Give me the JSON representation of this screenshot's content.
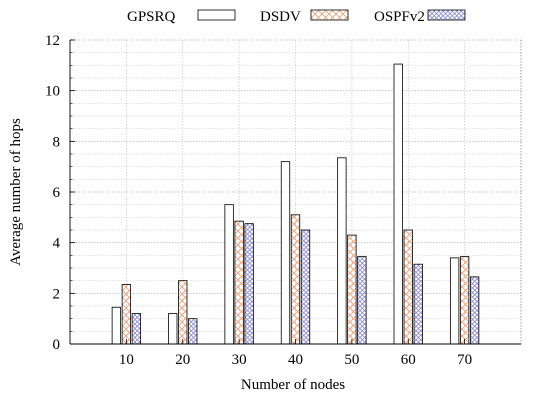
{
  "chart_data": {
    "type": "bar",
    "title": "",
    "xlabel": "Number of nodes",
    "ylabel": "Average number of hops",
    "categories": [
      "10",
      "20",
      "30",
      "40",
      "50",
      "60",
      "70"
    ],
    "series": [
      {
        "name": "GPSRQ",
        "values": [
          1.45,
          1.2,
          5.5,
          7.2,
          7.35,
          11.05,
          3.4
        ],
        "pattern": "solid",
        "color": "#ffffff",
        "stroke": "#000000"
      },
      {
        "name": "DSDV",
        "values": [
          2.35,
          2.5,
          4.85,
          5.1,
          4.3,
          4.5,
          3.45
        ],
        "pattern": "crosshatch",
        "color": "#e8a27c",
        "stroke": "#000000"
      },
      {
        "name": "OSPFv2",
        "values": [
          1.2,
          1.0,
          4.75,
          4.5,
          3.45,
          3.15,
          2.65
        ],
        "pattern": "crosshatch",
        "color": "#8a8ad0",
        "stroke": "#000000"
      }
    ],
    "ylim": [
      0,
      12
    ],
    "yticks": [
      "0",
      "2",
      "4",
      "6",
      "8",
      "10",
      "12"
    ],
    "grid": true,
    "legend_position": "top"
  }
}
